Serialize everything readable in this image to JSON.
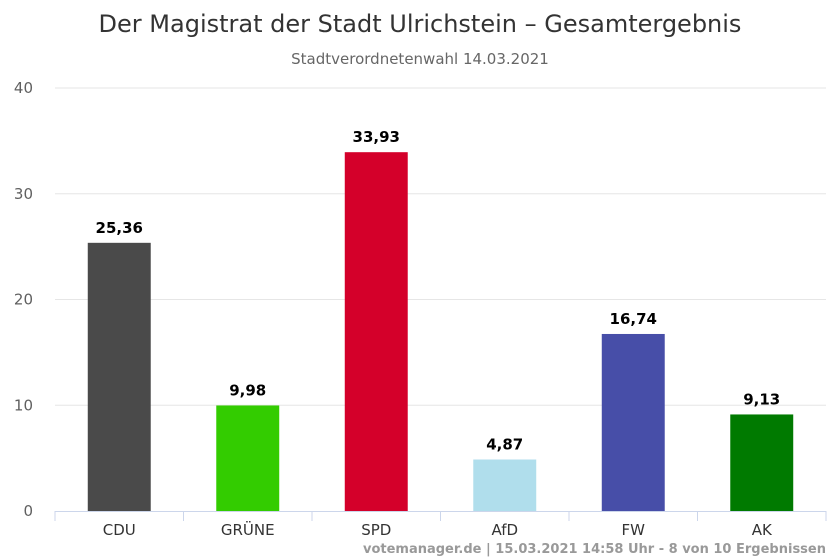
{
  "chart_data": {
    "type": "bar",
    "title": "Der Magistrat der Stadt Ulrichstein – Gesamtergebnis",
    "subtitle": "Stadtverordnetenwahl 14.03.2021",
    "xlabel": "",
    "ylabel": "",
    "categories": [
      "CDU",
      "GRÜNE",
      "SPD",
      "AfD",
      "FW",
      "AK"
    ],
    "values": [
      25.36,
      9.98,
      33.93,
      4.87,
      16.74,
      9.13
    ],
    "value_labels": [
      "25,36",
      "9,98",
      "33,93",
      "4,87",
      "16,74",
      "9,13"
    ],
    "colors": [
      "#4a4a4a",
      "#33cc00",
      "#d4002a",
      "#b0deec",
      "#474ea8",
      "#007a00"
    ],
    "ylim": [
      0,
      40
    ],
    "yticks": [
      0,
      10,
      20,
      30,
      40
    ],
    "grid": true,
    "legend": "none"
  },
  "credit": "votemanager.de | 15.03.2021 14:58 Uhr - 8 von 10 Ergebnissen"
}
